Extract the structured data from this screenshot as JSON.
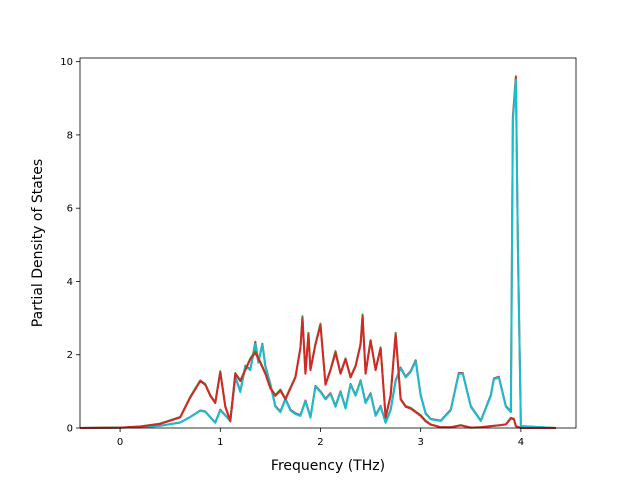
{
  "chart_data": {
    "type": "line",
    "title": "",
    "xlabel": "Frequency (THz)",
    "ylabel": "Partial Density of States",
    "xlim": [
      -0.4,
      4.55
    ],
    "ylim": [
      0,
      10.1
    ],
    "xticks": [
      0,
      1,
      2,
      3,
      4
    ],
    "yticks": [
      0,
      2,
      4,
      6,
      8,
      10
    ],
    "grid": false,
    "legend": "none",
    "colors": [
      "#1f77b4",
      "#ff7f0e",
      "#2ca02c",
      "#d62728",
      "#9467bd",
      "#8c564b",
      "#e377c2",
      "#7f7f7f",
      "#bcbd22",
      "#17becf"
    ],
    "series": [
      {
        "x": [
          -0.4,
          0.0,
          0.2,
          0.4,
          0.6,
          0.7,
          0.8,
          0.85,
          0.9,
          0.95,
          1.0,
          1.05,
          1.1,
          1.15,
          1.2,
          1.25,
          1.3,
          1.35,
          1.4,
          1.45,
          1.5,
          1.55,
          1.6,
          1.65,
          1.7,
          1.75,
          1.8,
          1.82,
          1.85,
          1.88,
          1.9,
          1.95,
          2.0,
          2.05,
          2.1,
          2.15,
          2.2,
          2.25,
          2.3,
          2.35,
          2.4,
          2.42,
          2.45,
          2.5,
          2.55,
          2.6,
          2.65,
          2.7,
          2.75,
          2.8,
          2.85,
          2.9,
          2.95,
          3.0,
          3.05,
          3.1,
          3.2,
          3.3,
          3.4,
          3.5,
          3.6,
          3.7,
          3.8,
          3.85,
          3.9,
          3.93,
          3.95,
          4.0,
          4.35
        ],
        "values": [
          0,
          0.01,
          0.04,
          0.12,
          0.3,
          0.85,
          1.3,
          1.2,
          0.9,
          0.7,
          1.55,
          0.6,
          0.2,
          1.5,
          1.3,
          1.6,
          1.9,
          2.1,
          1.8,
          1.5,
          1.1,
          0.9,
          1.05,
          0.8,
          1.1,
          1.4,
          2.2,
          3.05,
          1.5,
          2.6,
          1.6,
          2.3,
          2.85,
          1.2,
          1.6,
          2.1,
          1.5,
          1.9,
          1.4,
          1.7,
          2.3,
          3.1,
          1.5,
          2.4,
          1.6,
          2.2,
          0.3,
          0.9,
          2.6,
          0.8,
          0.6,
          0.55,
          0.45,
          0.35,
          0.2,
          0.1,
          0.02,
          0.02,
          0.08,
          0.01,
          0.02,
          0.05,
          0.08,
          0.1,
          0.28,
          0.25,
          0.05,
          0.0,
          0
        ]
      },
      {
        "x": [
          -0.4,
          0.0,
          0.2,
          0.4,
          0.6,
          0.7,
          0.8,
          0.85,
          0.9,
          0.95,
          1.0,
          1.05,
          1.1,
          1.15,
          1.2,
          1.25,
          1.3,
          1.35,
          1.4,
          1.45,
          1.5,
          1.55,
          1.6,
          1.65,
          1.7,
          1.75,
          1.8,
          1.82,
          1.85,
          1.88,
          1.9,
          1.95,
          2.0,
          2.05,
          2.1,
          2.15,
          2.2,
          2.25,
          2.3,
          2.35,
          2.4,
          2.42,
          2.45,
          2.5,
          2.55,
          2.6,
          2.65,
          2.7,
          2.75,
          2.8,
          2.85,
          2.9,
          2.95,
          3.0,
          3.05,
          3.1,
          3.2,
          3.3,
          3.4,
          3.5,
          3.6,
          3.7,
          3.8,
          3.85,
          3.9,
          3.93,
          3.95,
          4.0,
          4.35
        ],
        "values": [
          0,
          0.01,
          0.04,
          0.11,
          0.29,
          0.83,
          1.28,
          1.18,
          0.88,
          0.68,
          1.52,
          0.58,
          0.18,
          1.48,
          1.28,
          1.58,
          1.88,
          2.05,
          1.78,
          1.48,
          1.08,
          0.88,
          1.02,
          0.78,
          1.08,
          1.38,
          2.18,
          3.0,
          1.48,
          2.55,
          1.58,
          2.28,
          2.8,
          1.18,
          1.58,
          2.05,
          1.48,
          1.88,
          1.38,
          1.68,
          2.28,
          3.05,
          1.48,
          2.38,
          1.58,
          2.18,
          0.28,
          0.88,
          2.55,
          0.78,
          0.58,
          0.53,
          0.43,
          0.33,
          0.18,
          0.09,
          0.02,
          0.02,
          0.07,
          0.01,
          0.02,
          0.05,
          0.08,
          0.1,
          0.26,
          0.24,
          0.05,
          0.0,
          0
        ]
      },
      {
        "x": [
          -0.4,
          0.0,
          0.2,
          0.4,
          0.6,
          0.7,
          0.8,
          0.85,
          0.9,
          0.95,
          1.0,
          1.05,
          1.1,
          1.15,
          1.2,
          1.25,
          1.3,
          1.35,
          1.38,
          1.42,
          1.45,
          1.5,
          1.55,
          1.6,
          1.65,
          1.7,
          1.75,
          1.8,
          1.85,
          1.9,
          1.95,
          2.0,
          2.05,
          2.1,
          2.15,
          2.2,
          2.25,
          2.3,
          2.35,
          2.4,
          2.45,
          2.5,
          2.55,
          2.6,
          2.65,
          2.7,
          2.75,
          2.8,
          2.85,
          2.9,
          2.95,
          3.0,
          3.05,
          3.1,
          3.2,
          3.3,
          3.38,
          3.42,
          3.5,
          3.6,
          3.7,
          3.73,
          3.78,
          3.85,
          3.9,
          3.92,
          3.95,
          3.97,
          4.0,
          4.35
        ],
        "values": [
          0,
          0.01,
          0.02,
          0.06,
          0.15,
          0.3,
          0.48,
          0.45,
          0.3,
          0.15,
          0.5,
          0.35,
          0.2,
          1.4,
          1.0,
          1.7,
          1.6,
          2.35,
          1.8,
          2.3,
          1.7,
          1.2,
          0.6,
          0.45,
          0.8,
          0.5,
          0.4,
          0.35,
          0.75,
          0.3,
          1.15,
          1.0,
          0.8,
          0.95,
          0.6,
          1.0,
          0.55,
          1.2,
          0.9,
          1.3,
          0.7,
          0.95,
          0.35,
          0.6,
          0.15,
          0.5,
          1.3,
          1.65,
          1.4,
          1.55,
          1.85,
          0.9,
          0.4,
          0.25,
          0.2,
          0.5,
          1.5,
          1.5,
          0.6,
          0.2,
          0.9,
          1.35,
          1.4,
          0.6,
          0.45,
          8.5,
          9.6,
          5.0,
          0.05,
          0
        ]
      },
      {
        "x": [
          -0.4,
          0.0,
          0.2,
          0.4,
          0.6,
          0.7,
          0.8,
          0.85,
          0.9,
          0.95,
          1.0,
          1.05,
          1.1,
          1.15,
          1.2,
          1.25,
          1.3,
          1.35,
          1.38,
          1.42,
          1.45,
          1.5,
          1.55,
          1.6,
          1.65,
          1.7,
          1.75,
          1.8,
          1.85,
          1.9,
          1.95,
          2.0,
          2.05,
          2.1,
          2.15,
          2.2,
          2.25,
          2.3,
          2.35,
          2.4,
          2.45,
          2.5,
          2.55,
          2.6,
          2.65,
          2.7,
          2.75,
          2.8,
          2.85,
          2.9,
          2.95,
          3.0,
          3.05,
          3.1,
          3.2,
          3.3,
          3.38,
          3.42,
          3.5,
          3.6,
          3.7,
          3.73,
          3.78,
          3.85,
          3.9,
          3.92,
          3.95,
          3.97,
          4.0,
          4.35
        ],
        "values": [
          0,
          0.01,
          0.02,
          0.06,
          0.15,
          0.3,
          0.47,
          0.44,
          0.29,
          0.14,
          0.48,
          0.34,
          0.19,
          1.38,
          0.98,
          1.68,
          1.58,
          2.3,
          1.78,
          2.28,
          1.68,
          1.18,
          0.58,
          0.43,
          0.78,
          0.48,
          0.38,
          0.33,
          0.73,
          0.28,
          1.13,
          0.98,
          0.78,
          0.93,
          0.58,
          0.98,
          0.53,
          1.18,
          0.88,
          1.28,
          0.68,
          0.93,
          0.33,
          0.58,
          0.14,
          0.48,
          1.28,
          1.63,
          1.38,
          1.53,
          1.82,
          0.88,
          0.38,
          0.24,
          0.19,
          0.48,
          1.48,
          1.48,
          0.58,
          0.19,
          0.88,
          1.33,
          1.38,
          0.58,
          0.43,
          8.4,
          9.5,
          4.9,
          0.05,
          0
        ]
      }
    ],
    "series_colors": [
      "#2ca02c",
      "#d62728",
      "#b73c2e",
      "#17becf"
    ],
    "draw_order": [
      2,
      3,
      0,
      1
    ]
  }
}
